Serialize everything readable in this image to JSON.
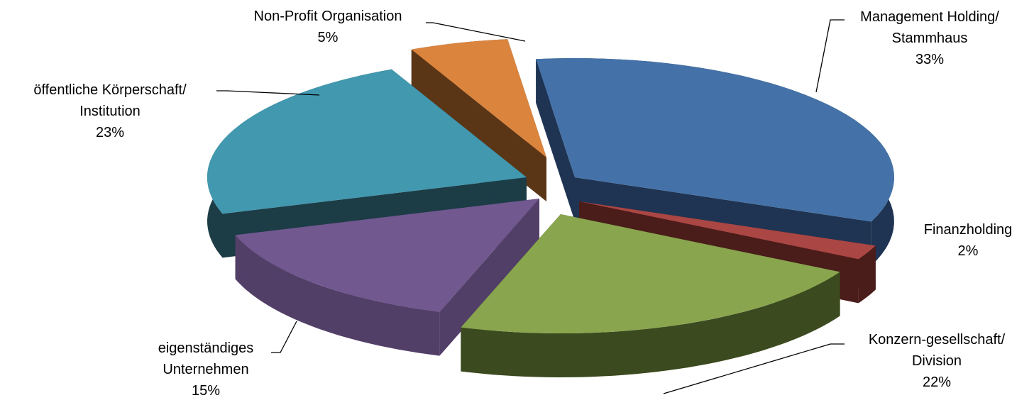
{
  "chart_data": {
    "type": "pie",
    "title": "",
    "slices": [
      {
        "label_lines": [
          "Management Holding/",
          "Stammhaus"
        ],
        "percent_text": "33%",
        "value": 33,
        "color": "#4472a8",
        "dark": "#1f3452"
      },
      {
        "label_lines": [
          "Finanzholding"
        ],
        "percent_text": "2%",
        "value": 2,
        "color": "#aa4643",
        "dark": "#4a1c1a"
      },
      {
        "label_lines": [
          "Konzern-gesellschaft/",
          "Division"
        ],
        "percent_text": "22%",
        "value": 22,
        "color": "#89a54e",
        "dark": "#3b4a1f"
      },
      {
        "label_lines": [
          "eigenständiges",
          "Unternehmen"
        ],
        "percent_text": "15%",
        "value": 15,
        "color": "#71588f",
        "dark": "#523f68"
      },
      {
        "label_lines": [
          "öffentliche Körperschaft/",
          "Institution"
        ],
        "percent_text": "23%",
        "value": 23,
        "color": "#4198af",
        "dark": "#1c3c46"
      },
      {
        "label_lines": [
          "Non-Profit Organisation"
        ],
        "percent_text": "5%",
        "value": 5,
        "color": "#db843d",
        "dark": "#5a3516"
      }
    ],
    "exploded": true,
    "legend": "none",
    "labels": "outside with leader lines"
  }
}
